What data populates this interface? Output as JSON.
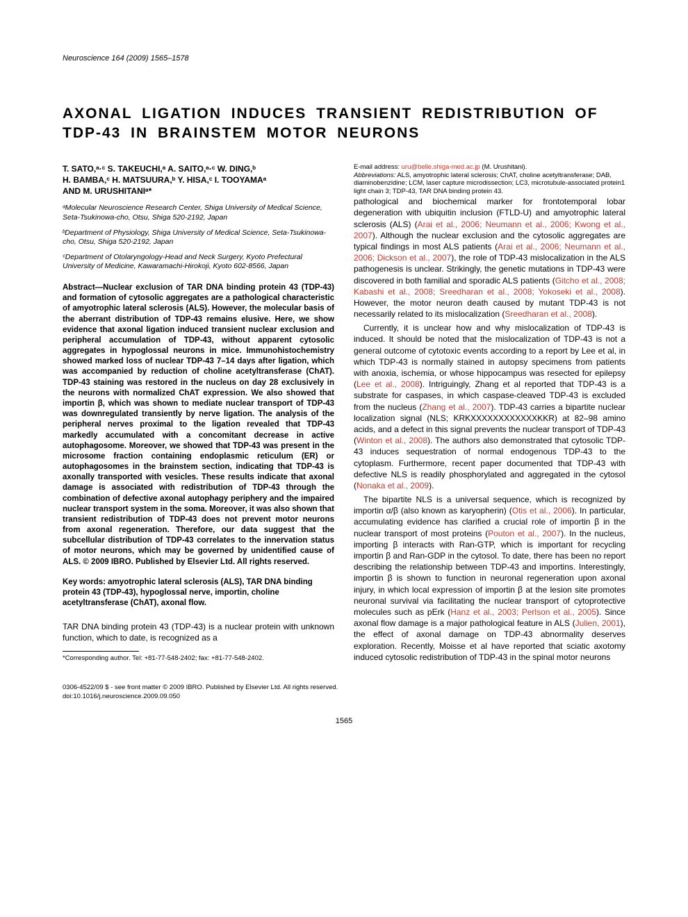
{
  "journal": {
    "name": "Neuroscience",
    "citation": "164 (2009) 1565–1578"
  },
  "title": "AXONAL LIGATION INDUCES TRANSIENT REDISTRIBUTION OF TDP-43 IN BRAINSTEM MOTOR NEURONS",
  "authors_line1": "T. SATO,ᵃ·ᶜ S. TAKEUCHI,ᵃ A. SAITO,ᵃ·ᶜ W. DING,ᵇ",
  "authors_line2": "H. BAMBA,ᶜ H. MATSUURA,ᵇ Y. HISA,ᶜ I. TOOYAMAᵃ",
  "authors_line3": "AND M. URUSHITANIᵃ*",
  "affils": {
    "a": "ᵃMolecular Neuroscience Research Center, Shiga University of Medical Science, Seta-Tsukinowa-cho, Otsu, Shiga 520-2192, Japan",
    "b": "ᵇDepartment of Physiology, Shiga University of Medical Science, Seta-Tsukinowa-cho, Otsu, Shiga 520-2192, Japan",
    "c": "ᶜDepartment of Otolaryngology-Head and Neck Surgery, Kyoto Prefectural University of Medicine, Kawaramachi-Hirokoji, Kyoto 602-8566, Japan"
  },
  "abstract": "Abstract—Nuclear exclusion of TAR DNA binding protein 43 (TDP-43) and formation of cytosolic aggregates are a pathological characteristic of amyotrophic lateral sclerosis (ALS). However, the molecular basis of the aberrant distribution of TDP-43 remains elusive. Here, we show evidence that axonal ligation induced transient nuclear exclusion and peripheral accumulation of TDP-43, without apparent cytosolic aggregates in hypoglossal neurons in mice. Immunohistochemistry showed marked loss of nuclear TDP-43 7–14 days after ligation, which was accompanied by reduction of choline acetyltransferase (ChAT). TDP-43 staining was restored in the nucleus on day 28 exclusively in the neurons with normalized ChAT expression. We also showed that importin β, which was shown to mediate nuclear transport of TDP-43 was downregulated transiently by nerve ligation. The analysis of the peripheral nerves proximal to the ligation revealed that TDP-43 markedly accumulated with a concomitant decrease in active autophagosome. Moreover, we showed that TDP-43 was present in the microsome fraction containing endoplasmic reticulum (ER) or autophagosomes in the brainstem section, indicating that TDP-43 is axonally transported with vesicles. These results indicate that axonal damage is associated with redistribution of TDP-43 through the combination of defective axonal autophagy periphery and the impaired nuclear transport system in the soma. Moreover, it was also shown that transient redistribution of TDP-43 does not prevent motor neurons from axonal regeneration. Therefore, our data suggest that the subcellular distribution of TDP-43 correlates to the innervation status of motor neurons, which may be governed by unidentified cause of ALS. © 2009 IBRO. Published by Elsevier Ltd. All rights reserved.",
  "keywords": "Key words: amyotrophic lateral sclerosis (ALS), TAR DNA binding protein 43 (TDP-43), hypoglossal nerve, importin, choline acetyltransferase (ChAT), axonal flow.",
  "intro_p1": "TAR DNA binding protein 43 (TDP-43) is a nuclear protein with unknown function, which to date, is recognized as a",
  "body_p1_a": "pathological and biochemical marker for frontotemporal lobar degeneration with ubiquitin inclusion (FTLD-U) and amyotrophic lateral sclerosis (ALS) (",
  "body_p1_ref1": "Arai et al., 2006; Neumann et al., 2006; Kwong et al., 2007",
  "body_p1_b": "). Although the nuclear exclusion and the cytosolic aggregates are typical findings in most ALS patients (",
  "body_p1_ref2": "Arai et al., 2006; Neumann et al., 2006; Dickson et al., 2007",
  "body_p1_c": "), the role of TDP-43 mislocalization in the ALS pathogenesis is unclear. Strikingly, the genetic mutations in TDP-43 were discovered in both familial and sporadic ALS patients (",
  "body_p1_ref3": "Gitcho et al., 2008; Kabashi et al., 2008; Sreedharan et al., 2008; Yokoseki et al., 2008",
  "body_p1_d": "). However, the motor neuron death caused by mutant TDP-43 is not necessarily related to its mislocalization (",
  "body_p1_ref4": "Sreedharan et al., 2008",
  "body_p1_e": ").",
  "body_p2_a": "Currently, it is unclear how and why mislocalization of TDP-43 is induced. It should be noted that the mislocalization of TDP-43 is not a general outcome of cytotoxic events according to a report by Lee et al, in which TDP-43 is normally stained in autopsy specimens from patients with anoxia, ischemia, or whose hippocampus was resected for epilepsy (",
  "body_p2_ref1": "Lee et al., 2008",
  "body_p2_b": "). Intriguingly, Zhang et al reported that TDP-43 is a substrate for caspases, in which caspase-cleaved TDP-43 is excluded from the nucleus (",
  "body_p2_ref2": "Zhang et al., 2007",
  "body_p2_c": "). TDP-43 carries a bipartite nuclear localization signal (NLS; KRKXXXXXXXXXXXXKKR) at 82–98 amino acids, and a defect in this signal prevents the nuclear transport of TDP-43 (",
  "body_p2_ref3": "Winton et al., 2008",
  "body_p2_d": "). The authors also demonstrated that cytosolic TDP-43 induces sequestration of normal endogenous TDP-43 to the cytoplasm. Furthermore, recent paper documented that TDP-43 with defective NLS is readily phosphorylated and aggregated in the cytosol (",
  "body_p2_ref4": "Nonaka et al., 2009",
  "body_p2_e": ").",
  "body_p3_a": "The bipartite NLS is a universal sequence, which is recognized by importin α/β (also known as karyopherin) (",
  "body_p3_ref1": "Otis et al., 2006",
  "body_p3_b": "). In particular, accumulating evidence has clarified a crucial role of importin β in the nuclear transport of most proteins (",
  "body_p3_ref2": "Pouton et al., 2007",
  "body_p3_c": "). In the nucleus, importing β interacts with Ran-GTP, which is important for recycling importin β and Ran-GDP in the cytosol. To date, there has been no report describing the relationship between TDP-43 and importins. Interestingly, importin β is shown to function in neuronal regeneration upon axonal injury, in which local expression of importin β at the lesion site promotes neuronal survival via facilitating the nuclear transport of cytoprotective molecules such as pErk (",
  "body_p3_ref3": "Hanz et al., 2003; Perlson et al., 2005",
  "body_p3_d": "). Since axonal flow damage is a major pathological feature in ALS (",
  "body_p3_ref4": "Julien, 2001",
  "body_p3_e": "), the effect of axonal damage on TDP-43 abnormality deserves exploration. Recently, Moisse et al have reported that sciatic axotomy induced cytosolic redistribution of TDP-43 in the spinal motor neurons",
  "footnote": {
    "corresponding": "*Corresponding author. Tel: +81-77-548-2402; fax: +81-77-548-2402.",
    "email_label": "E-mail address: ",
    "email": "uru@belle.shiga-med.ac.jp",
    "email_paren": " (M. Urushitani).",
    "abbr_label": "Abbreviations:",
    "abbr": " ALS, amyotrophic lateral sclerosis; ChAT, choline acetyltransferase; DAB, diaminobenzidine; LCM, laser capture microdissection; LC3, microtubule-associated protein1 light chain 3; TDP-43, TAR DNA binding protein 43."
  },
  "bottom": {
    "copyright": "0306-4522/09 $ - see front matter © 2009 IBRO. Published by Elsevier Ltd. All rights reserved.",
    "doi": "doi:10.1016/j.neuroscience.2009.09.050"
  },
  "page_number": "1565",
  "colors": {
    "ref": "#c0392b",
    "text": "#000000",
    "bg": "#ffffff"
  }
}
